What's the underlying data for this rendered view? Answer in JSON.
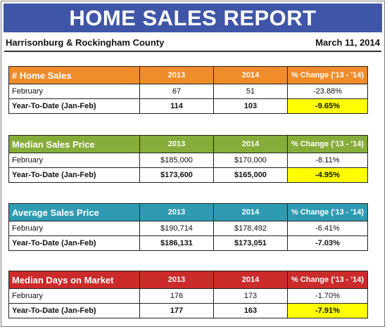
{
  "header": {
    "title": "HOME SALES REPORT",
    "location": "Harrisonburg & Rockingham County",
    "date": "March 11, 2014"
  },
  "colors": {
    "banner": "#3f56a8",
    "home_sales": "#f08c2a",
    "median_price": "#86ad3a",
    "average_price": "#2f9bb3",
    "days_on_market": "#cc2b2b",
    "highlight": "#ffff00"
  },
  "tables": [
    {
      "title": "# Home Sales",
      "col_2013": "2013",
      "col_2014": "2014",
      "col_change": "% Change ('13 - '14)",
      "rows": [
        {
          "label": "February",
          "v2013": "67",
          "v2014": "51",
          "change": "-23.88%",
          "highlight": false
        },
        {
          "label": "Year-To-Date (Jan-Feb)",
          "v2013": "114",
          "v2014": "103",
          "change": "-9.65%",
          "highlight": true
        }
      ]
    },
    {
      "title": "Median Sales Price",
      "col_2013": "2013",
      "col_2014": "2014",
      "col_change": "% Change ('13 - '14)",
      "rows": [
        {
          "label": "February",
          "v2013": "$185,000",
          "v2014": "$170,000",
          "change": "-8.11%",
          "highlight": false
        },
        {
          "label": "Year-To-Date (Jan-Feb)",
          "v2013": "$173,600",
          "v2014": "$165,000",
          "change": "-4.95%",
          "highlight": true
        }
      ]
    },
    {
      "title": "Average Sales Price",
      "col_2013": "2013",
      "col_2014": "2014",
      "col_change": "% Change ('13 - '14)",
      "rows": [
        {
          "label": "February",
          "v2013": "$190,714",
          "v2014": "$178,492",
          "change": "-6.41%",
          "highlight": false
        },
        {
          "label": "Year-To-Date (Jan-Feb)",
          "v2013": "$186,131",
          "v2014": "$173,051",
          "change": "-7.03%",
          "highlight": false
        }
      ]
    },
    {
      "title": "Median Days on Market",
      "col_2013": "2013",
      "col_2014": "2014",
      "col_change": "% Change ('13 - '14)",
      "rows": [
        {
          "label": "February",
          "v2013": "176",
          "v2014": "173",
          "change": "-1.70%",
          "highlight": false
        },
        {
          "label": "Year-To-Date (Jan-Feb)",
          "v2013": "177",
          "v2014": "163",
          "change": "-7.91%",
          "highlight": true
        }
      ]
    }
  ]
}
